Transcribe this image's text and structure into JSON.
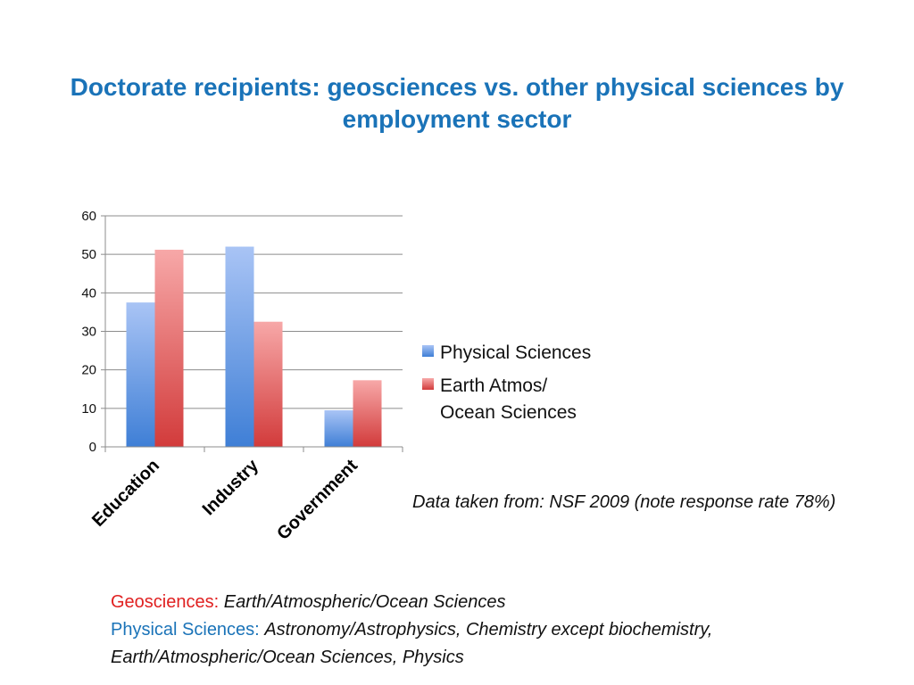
{
  "title_lines": [
    "Doctorate recipients: geosciences vs. other physical sciences by",
    "employment sector"
  ],
  "source_note": "Data taken from: NSF 2009 (note response rate 78%)",
  "footnotes": {
    "geo_term": "Geosciences:",
    "geo_def": "Earth/Atmospheric/Ocean Sciences",
    "phys_term": "Physical Sciences:",
    "phys_def_line1": "Astronomy/Astrophysics, Chemistry except biochemistry,",
    "phys_def_line2": "Earth/Atmospheric/Ocean Sciences, Physics"
  },
  "colors": {
    "title": "#1a73b8",
    "geo_term": "#e02020",
    "phys_term": "#1a73b8",
    "physical_series_top": "#a9c4f5",
    "physical_series_bottom": "#3f7fd6",
    "earth_series_top": "#f7a8a8",
    "earth_series_bottom": "#d23b3b"
  },
  "chart_data": {
    "type": "bar",
    "categories": [
      "Education",
      "Industry",
      "Government"
    ],
    "series": [
      {
        "name": "Physical Sciences",
        "values": [
          37.5,
          52,
          9.5
        ]
      },
      {
        "name": "Earth Atmos/ Ocean Sciences",
        "legend_lines": [
          "Earth Atmos/",
          "Ocean Sciences"
        ],
        "values": [
          51.2,
          32.5,
          17.3
        ]
      }
    ],
    "ylim": [
      0,
      60
    ],
    "yticks": [
      0,
      10,
      20,
      30,
      40,
      50,
      60
    ],
    "grid": true,
    "legend_position": "right",
    "xlabel": "",
    "ylabel": ""
  }
}
